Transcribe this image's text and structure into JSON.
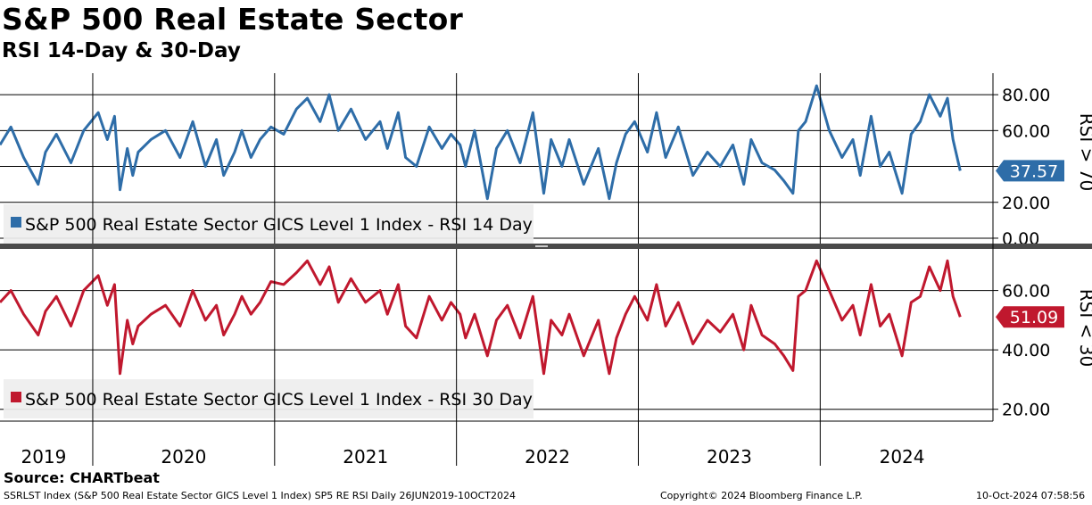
{
  "header": {
    "title": "S&P 500 Real Estate Sector",
    "subtitle": "RSI 14-Day & 30-Day"
  },
  "footer": {
    "source": "Source: CHARTbeat",
    "description": "SSRLST Index (S&P 500 Real Estate Sector GICS Level 1 Index) SP5 RE RSI  Daily 26JUN2019-10OCT2024",
    "copyright": "Copyright© 2024 Bloomberg Finance L.P.",
    "timestamp": "10-Oct-2024 07:58:56"
  },
  "colors": {
    "rsi14": "#2e6da8",
    "rsi30": "#c0182e"
  },
  "chart_data": [
    {
      "type": "line",
      "name": "rsi-14",
      "legend": "S&P 500 Real Estate Sector GICS Level 1 Index - RSI 14 Day",
      "side_label": "RSI > 70",
      "last_value_label": "37.57",
      "last_value": 37.57,
      "ylim": [
        -4,
        92
      ],
      "yticks": [
        0,
        20,
        40,
        60,
        80
      ],
      "ytick_labels": [
        "0.00",
        "20.00",
        "",
        "60.00",
        "80.00"
      ],
      "x": [
        2019.49,
        2019.55,
        2019.62,
        2019.7,
        2019.74,
        2019.8,
        2019.88,
        2019.95,
        2020.03,
        2020.08,
        2020.12,
        2020.15,
        2020.19,
        2020.22,
        2020.25,
        2020.32,
        2020.4,
        2020.48,
        2020.55,
        2020.62,
        2020.68,
        2020.72,
        2020.78,
        2020.82,
        2020.87,
        2020.92,
        2020.98,
        2021.05,
        2021.12,
        2021.18,
        2021.25,
        2021.3,
        2021.35,
        2021.42,
        2021.5,
        2021.58,
        2021.62,
        2021.68,
        2021.72,
        2021.78,
        2021.85,
        2021.92,
        2021.97,
        2022.02,
        2022.05,
        2022.1,
        2022.17,
        2022.22,
        2022.28,
        2022.35,
        2022.42,
        2022.48,
        2022.52,
        2022.58,
        2022.62,
        2022.7,
        2022.78,
        2022.84,
        2022.88,
        2022.93,
        2022.98,
        2023.05,
        2023.1,
        2023.15,
        2023.22,
        2023.3,
        2023.38,
        2023.45,
        2023.52,
        2023.58,
        2023.62,
        2023.68,
        2023.75,
        2023.8,
        2023.85,
        2023.88,
        2023.92,
        2023.98,
        2024.05,
        2024.12,
        2024.18,
        2024.22,
        2024.28,
        2024.33,
        2024.38,
        2024.45,
        2024.5,
        2024.55,
        2024.6,
        2024.66,
        2024.7,
        2024.73,
        2024.77
      ],
      "values": [
        52,
        62,
        45,
        30,
        48,
        58,
        42,
        60,
        70,
        55,
        68,
        27,
        50,
        35,
        48,
        55,
        60,
        45,
        65,
        40,
        55,
        35,
        48,
        60,
        45,
        55,
        62,
        58,
        72,
        78,
        65,
        80,
        60,
        72,
        55,
        65,
        50,
        70,
        45,
        40,
        62,
        50,
        58,
        52,
        40,
        60,
        22,
        50,
        60,
        42,
        70,
        25,
        55,
        40,
        55,
        30,
        50,
        22,
        42,
        58,
        65,
        48,
        70,
        45,
        62,
        35,
        48,
        40,
        52,
        30,
        55,
        42,
        38,
        32,
        25,
        60,
        65,
        85,
        60,
        45,
        55,
        35,
        68,
        40,
        48,
        25,
        58,
        65,
        80,
        68,
        78,
        55,
        37.57
      ]
    },
    {
      "type": "line",
      "name": "rsi-30",
      "legend": "S&P 500 Real Estate Sector GICS Level 1 Index - RSI 30 Day",
      "side_label": "RSI < 30",
      "last_value_label": "51.09",
      "last_value": 51.09,
      "ylim": [
        16,
        74
      ],
      "yticks": [
        20,
        40,
        60
      ],
      "ytick_labels": [
        "20.00",
        "40.00",
        "60.00"
      ],
      "x": [
        2019.49,
        2019.55,
        2019.62,
        2019.7,
        2019.74,
        2019.8,
        2019.88,
        2019.95,
        2020.03,
        2020.08,
        2020.12,
        2020.15,
        2020.19,
        2020.22,
        2020.25,
        2020.32,
        2020.4,
        2020.48,
        2020.55,
        2020.62,
        2020.68,
        2020.72,
        2020.78,
        2020.82,
        2020.87,
        2020.92,
        2020.98,
        2021.05,
        2021.12,
        2021.18,
        2021.25,
        2021.3,
        2021.35,
        2021.42,
        2021.5,
        2021.58,
        2021.62,
        2021.68,
        2021.72,
        2021.78,
        2021.85,
        2021.92,
        2021.97,
        2022.02,
        2022.05,
        2022.1,
        2022.17,
        2022.22,
        2022.28,
        2022.35,
        2022.42,
        2022.48,
        2022.52,
        2022.58,
        2022.62,
        2022.7,
        2022.78,
        2022.84,
        2022.88,
        2022.93,
        2022.98,
        2023.05,
        2023.1,
        2023.15,
        2023.22,
        2023.3,
        2023.38,
        2023.45,
        2023.52,
        2023.58,
        2023.62,
        2023.68,
        2023.75,
        2023.8,
        2023.85,
        2023.88,
        2023.92,
        2023.98,
        2024.05,
        2024.12,
        2024.18,
        2024.22,
        2024.28,
        2024.33,
        2024.38,
        2024.45,
        2024.5,
        2024.55,
        2024.6,
        2024.66,
        2024.7,
        2024.73,
        2024.77
      ],
      "values": [
        56,
        60,
        52,
        45,
        53,
        58,
        48,
        60,
        65,
        55,
        62,
        32,
        50,
        42,
        48,
        52,
        55,
        48,
        60,
        50,
        55,
        45,
        52,
        58,
        52,
        56,
        63,
        62,
        66,
        70,
        62,
        68,
        56,
        64,
        56,
        60,
        52,
        62,
        48,
        44,
        58,
        50,
        56,
        52,
        44,
        52,
        38,
        50,
        55,
        44,
        58,
        32,
        50,
        45,
        52,
        38,
        50,
        32,
        44,
        52,
        58,
        50,
        62,
        48,
        56,
        42,
        50,
        46,
        52,
        40,
        55,
        45,
        42,
        38,
        33,
        58,
        60,
        70,
        60,
        50,
        55,
        45,
        62,
        48,
        52,
        38,
        56,
        58,
        68,
        60,
        70,
        58,
        51.09
      ]
    }
  ],
  "x_axis": {
    "year_labels": [
      "2019",
      "2020",
      "2021",
      "2022",
      "2023",
      "2024"
    ],
    "year_label_positions": [
      2019.73,
      2020.5,
      2021.5,
      2022.5,
      2023.5,
      2024.45
    ],
    "year_boundaries": [
      2020.0,
      2021.0,
      2022.0,
      2023.0,
      2024.0
    ],
    "range": [
      2019.49,
      2024.95
    ]
  }
}
